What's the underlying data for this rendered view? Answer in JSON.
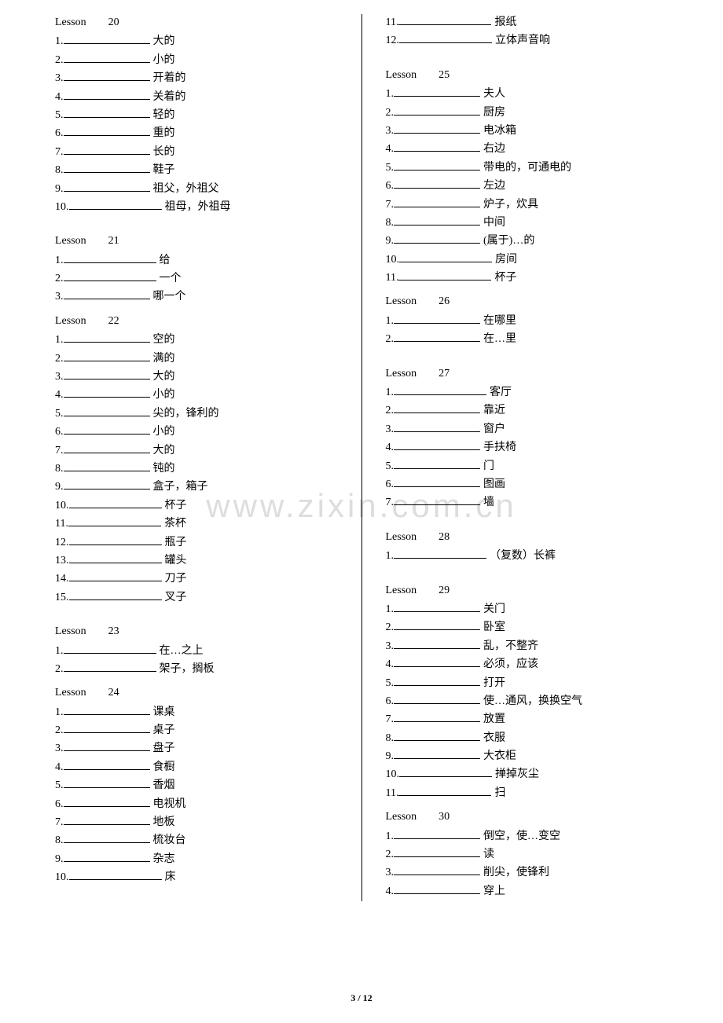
{
  "watermark": "www.zixin.com.cn",
  "footer": "3 / 12",
  "left": [
    {
      "type": "lesson",
      "label": "Lesson",
      "num": "20"
    },
    {
      "type": "entry",
      "n": "1.",
      "t": "大的"
    },
    {
      "type": "entry",
      "n": "2.",
      "t": "小的"
    },
    {
      "type": "entry",
      "n": "3.",
      "t": "开着的"
    },
    {
      "type": "entry",
      "n": "4.",
      "t": "关着的"
    },
    {
      "type": "entry",
      "n": "5.",
      "t": "轻的"
    },
    {
      "type": "entry",
      "n": "6.",
      "t": "重的"
    },
    {
      "type": "entry",
      "n": "7.",
      "t": "长的"
    },
    {
      "type": "entry",
      "n": "8.",
      "t": "鞋子"
    },
    {
      "type": "entry",
      "n": "9.",
      "t": "祖父，外祖父"
    },
    {
      "type": "entry",
      "n": "10.",
      "t": "祖母，外祖母",
      "wide": true
    },
    {
      "type": "spacer"
    },
    {
      "type": "lesson",
      "label": "Lesson",
      "num": "21"
    },
    {
      "type": "entry",
      "n": "1.",
      "t": " 给",
      "wide": true
    },
    {
      "type": "entry",
      "n": "2.",
      "t": " 一个",
      "wide": true
    },
    {
      "type": "entry",
      "n": "3.",
      "t": "哪一个"
    },
    {
      "type": "lesson",
      "label": "Lesson",
      "num": "22"
    },
    {
      "type": "entry",
      "n": "1.",
      "t": "空的"
    },
    {
      "type": "entry",
      "n": "2.",
      "t": "满的"
    },
    {
      "type": "entry",
      "n": "3.",
      "t": "大的"
    },
    {
      "type": "entry",
      "n": "4.",
      "t": "小的"
    },
    {
      "type": "entry",
      "n": "5.",
      "t": "尖的，锋利的"
    },
    {
      "type": "entry",
      "n": "6.",
      "t": "小的"
    },
    {
      "type": "entry",
      "n": "7.",
      "t": "大的"
    },
    {
      "type": "entry",
      "n": "8.",
      "t": "钝的"
    },
    {
      "type": "entry",
      "n": "9.",
      "t": "盒子，箱子"
    },
    {
      "type": "entry",
      "n": "10.",
      "t": "杯子",
      "wide": true
    },
    {
      "type": "entry",
      "n": "11.",
      "t": "茶杯",
      "wide": true
    },
    {
      "type": "entry",
      "n": "12.",
      "t": "瓶子",
      "wide": true
    },
    {
      "type": "entry",
      "n": "13.",
      "t": "罐头",
      "wide": true
    },
    {
      "type": "entry",
      "n": "14.",
      "t": "刀子",
      "wide": true
    },
    {
      "type": "entry",
      "n": "15.",
      "t": "叉子",
      "wide": true
    },
    {
      "type": "spacer"
    },
    {
      "type": "lesson",
      "label": "Lesson",
      "num": "23"
    },
    {
      "type": "entry",
      "n": "1.",
      "t": " 在…之上",
      "wide": true
    },
    {
      "type": "entry",
      "n": "2.",
      "t": " 架子，搁板",
      "wide": true
    },
    {
      "type": "lesson",
      "label": "Lesson",
      "num": "24"
    },
    {
      "type": "entry",
      "n": "1.",
      "t": "课桌"
    },
    {
      "type": "entry",
      "n": "2.",
      "t": "桌子"
    },
    {
      "type": "entry",
      "n": "3.",
      "t": "盘子"
    },
    {
      "type": "entry",
      "n": "4.",
      "t": "食橱"
    },
    {
      "type": "entry",
      "n": "5.",
      "t": "香烟"
    },
    {
      "type": "entry",
      "n": "6.",
      "t": "电视机"
    },
    {
      "type": "entry",
      "n": "7.",
      "t": "地板"
    },
    {
      "type": "entry",
      "n": "8.",
      "t": "梳妆台"
    },
    {
      "type": "entry",
      "n": "9.",
      "t": "杂志"
    },
    {
      "type": "entry",
      "n": "10.",
      "t": "床",
      "wide": true
    }
  ],
  "right": [
    {
      "type": "entry",
      "n": "11.",
      "t": "报纸",
      "wide": true
    },
    {
      "type": "entry",
      "n": "12.",
      "t": "立体声音响",
      "wide": true
    },
    {
      "type": "spacer"
    },
    {
      "type": "lesson",
      "label": "Lesson",
      "num": "25"
    },
    {
      "type": "entry",
      "n": "1.",
      "t": "夫人"
    },
    {
      "type": "entry",
      "n": "2.",
      "t": "厨房"
    },
    {
      "type": "entry",
      "n": "3.",
      "t": "电冰箱"
    },
    {
      "type": "entry",
      "n": "4.",
      "t": "右边"
    },
    {
      "type": "entry",
      "n": "5.",
      "t": "带电的，可通电的"
    },
    {
      "type": "entry",
      "n": "6.",
      "t": "左边"
    },
    {
      "type": "entry",
      "n": "7.",
      "t": "炉子，炊具"
    },
    {
      "type": "entry",
      "n": "8.",
      "t": "中间"
    },
    {
      "type": "entry",
      "n": "9.",
      "t": "(属于)…的"
    },
    {
      "type": "entry",
      "n": "10.",
      "t": "房间",
      "wide": true
    },
    {
      "type": "entry",
      "n": "11.",
      "t": "杯子",
      "wide": true
    },
    {
      "type": "lesson",
      "label": "Lesson",
      "num": "26"
    },
    {
      "type": "entry",
      "n": "1.",
      "t": "在哪里"
    },
    {
      "type": "entry",
      "n": "2.",
      "t": "在…里"
    },
    {
      "type": "spacer"
    },
    {
      "type": "lesson",
      "label": "Lesson",
      "num": "27"
    },
    {
      "type": "entry",
      "n": "1.",
      "t": " 客厅",
      "wide": true
    },
    {
      "type": "entry",
      "n": "2.",
      "t": "靠近"
    },
    {
      "type": "entry",
      "n": "3.",
      "t": "窗户"
    },
    {
      "type": "entry",
      "n": "4.",
      "t": "手扶椅"
    },
    {
      "type": "entry",
      "n": "5.",
      "t": "门"
    },
    {
      "type": "entry",
      "n": "6.",
      "t": "图画"
    },
    {
      "type": "entry",
      "n": "7.",
      "t": "墙"
    },
    {
      "type": "spacer"
    },
    {
      "type": "lesson",
      "label": "Lesson",
      "num": "28"
    },
    {
      "type": "entry",
      "n": "1.",
      "t": " （复数）长裤",
      "wide": true
    },
    {
      "type": "spacer"
    },
    {
      "type": "lesson",
      "label": "Lesson",
      "num": "29"
    },
    {
      "type": "entry",
      "n": "1.",
      "t": "关门"
    },
    {
      "type": "entry",
      "n": "2.",
      "t": "卧室"
    },
    {
      "type": "entry",
      "n": "3.",
      "t": "乱，不整齐"
    },
    {
      "type": "entry",
      "n": "4.",
      "t": "必须，应该"
    },
    {
      "type": "entry",
      "n": "5.",
      "t": "打开"
    },
    {
      "type": "entry",
      "n": "6.",
      "t": "使…通风，换换空气"
    },
    {
      "type": "entry",
      "n": "7.",
      "t": "放置"
    },
    {
      "type": "entry",
      "n": "8.",
      "t": "衣服"
    },
    {
      "type": "entry",
      "n": "9.",
      "t": "大衣柜"
    },
    {
      "type": "entry",
      "n": "10.",
      "t": "掸掉灰尘",
      "wide": true
    },
    {
      "type": "entry",
      "n": "11.",
      "t": "扫",
      "wide": true
    },
    {
      "type": "lesson",
      "label": "Lesson",
      "num": "30"
    },
    {
      "type": "entry",
      "n": "1.",
      "t": "倒空，使…变空"
    },
    {
      "type": "entry",
      "n": "2.",
      "t": "读"
    },
    {
      "type": "entry",
      "n": "3.",
      "t": "削尖，使锋利"
    },
    {
      "type": "entry",
      "n": "4.",
      "t": "穿上"
    }
  ]
}
